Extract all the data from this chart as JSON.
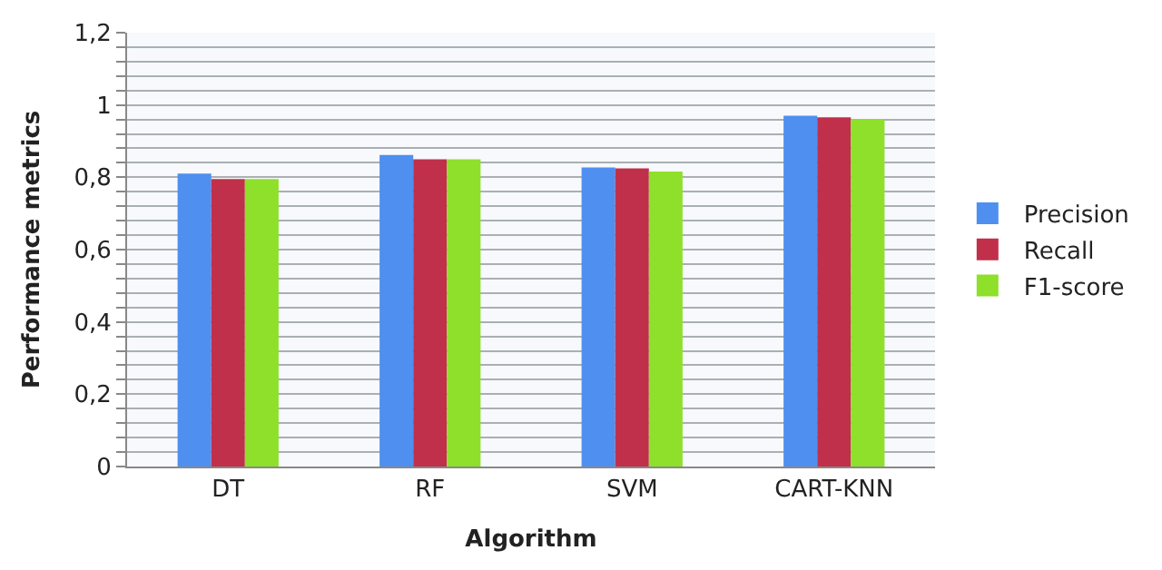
{
  "chart_data": {
    "type": "bar",
    "xlabel": "Algorithm",
    "ylabel": "Performance metrics",
    "categories": [
      "DT",
      "RF",
      "SVM",
      "CART-KNN"
    ],
    "series": [
      {
        "name": "Precision",
        "color": "#4f8ff0",
        "values": [
          0.81,
          0.862,
          0.827,
          0.97
        ]
      },
      {
        "name": "Recall",
        "color": "#c0304a",
        "values": [
          0.795,
          0.85,
          0.825,
          0.966
        ]
      },
      {
        "name": "F1-score",
        "color": "#8ee02a",
        "values": [
          0.795,
          0.85,
          0.816,
          0.96
        ]
      }
    ],
    "ylim": [
      0,
      1.2
    ],
    "yticks": [
      0,
      {
        "value": 0.04,
        "label": null
      },
      {
        "value": 0.08,
        "label": null
      },
      {
        "value": 0.12,
        "label": null
      },
      {
        "value": 0.16,
        "label": null
      },
      {
        "value": 0.2,
        "label": "0,2"
      },
      {
        "value": 0.24,
        "label": null
      },
      {
        "value": 0.28,
        "label": null
      },
      {
        "value": 0.32,
        "label": null
      },
      {
        "value": 0.36,
        "label": null
      },
      {
        "value": 0.4,
        "label": "0,4"
      },
      {
        "value": 0.44,
        "label": null
      },
      {
        "value": 0.48,
        "label": null
      },
      {
        "value": 0.52,
        "label": null
      },
      {
        "value": 0.56,
        "label": null
      },
      {
        "value": 0.6,
        "label": "0,6"
      },
      {
        "value": 0.64,
        "label": null
      },
      {
        "value": 0.68,
        "label": null
      },
      {
        "value": 0.72,
        "label": null
      },
      {
        "value": 0.76,
        "label": null
      },
      {
        "value": 0.8,
        "label": "0,8"
      },
      {
        "value": 0.84,
        "label": null
      },
      {
        "value": 0.88,
        "label": null
      },
      {
        "value": 0.92,
        "label": null
      },
      {
        "value": 0.96,
        "label": null
      },
      1,
      {
        "value": 1.04,
        "label": null
      },
      {
        "value": 1.08,
        "label": null
      },
      {
        "value": 1.12,
        "label": null
      },
      {
        "value": 1.16,
        "label": null
      },
      {
        "value": 1.2,
        "label": "1,2"
      }
    ],
    "grid": "y",
    "legend": "right"
  }
}
